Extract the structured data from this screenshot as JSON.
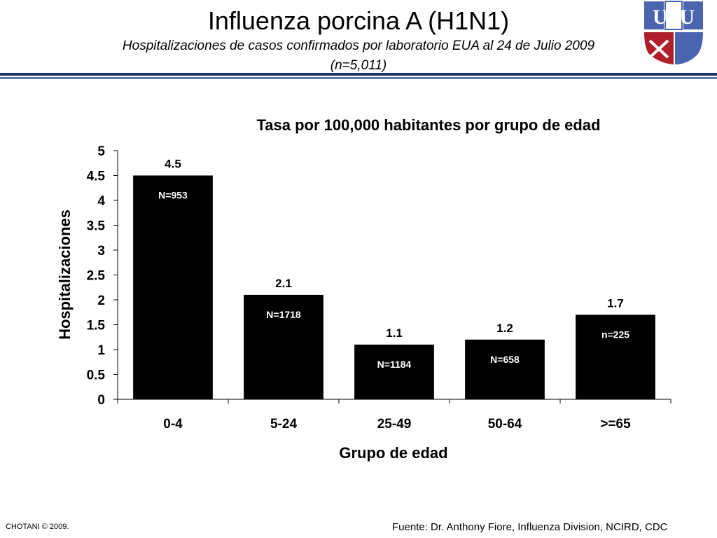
{
  "slide": {
    "title": "Influenza porcina A (H1N1)",
    "subtitle": "Hospitalizaciones de casos confirmados por laboratorio EUA al 24 de Julio 2009",
    "subtitle_line2": "(n=5,011)",
    "logo_text": "USU",
    "footer_left": "CHOTANI © 2009.",
    "footer_right": "Fuente: Dr. Anthony Fiore, Influenza Division, NCIRD, CDC",
    "colors": {
      "rule_dark": "#1f2f6b",
      "rule_light": "#5b76b8",
      "bar": "#000000",
      "logo_blue": "#4a64b0",
      "logo_red": "#b01e2a"
    }
  },
  "chart_data": {
    "type": "bar",
    "title": "Tasa por 100,000 habitantes por grupo de edad",
    "xlabel": "Grupo de edad",
    "ylabel": "Hospitalizaciones",
    "categories": [
      "0-4",
      "5-24",
      "25-49",
      "50-64",
      ">=65"
    ],
    "values": [
      4.5,
      2.1,
      1.1,
      1.2,
      1.7
    ],
    "value_labels": [
      "4.5",
      "2.1",
      "1.1",
      "1.2",
      "1.7"
    ],
    "bar_annotations": [
      "N=953",
      "N=1718",
      "N=1184",
      "N=658",
      "n=225"
    ],
    "ylim": [
      0,
      5
    ],
    "yticks": [
      "0",
      "0.5",
      "1",
      "1.5",
      "2",
      "2.5",
      "3",
      "3.5",
      "4",
      "4.5",
      "5"
    ],
    "grid": false,
    "legend": "none"
  }
}
